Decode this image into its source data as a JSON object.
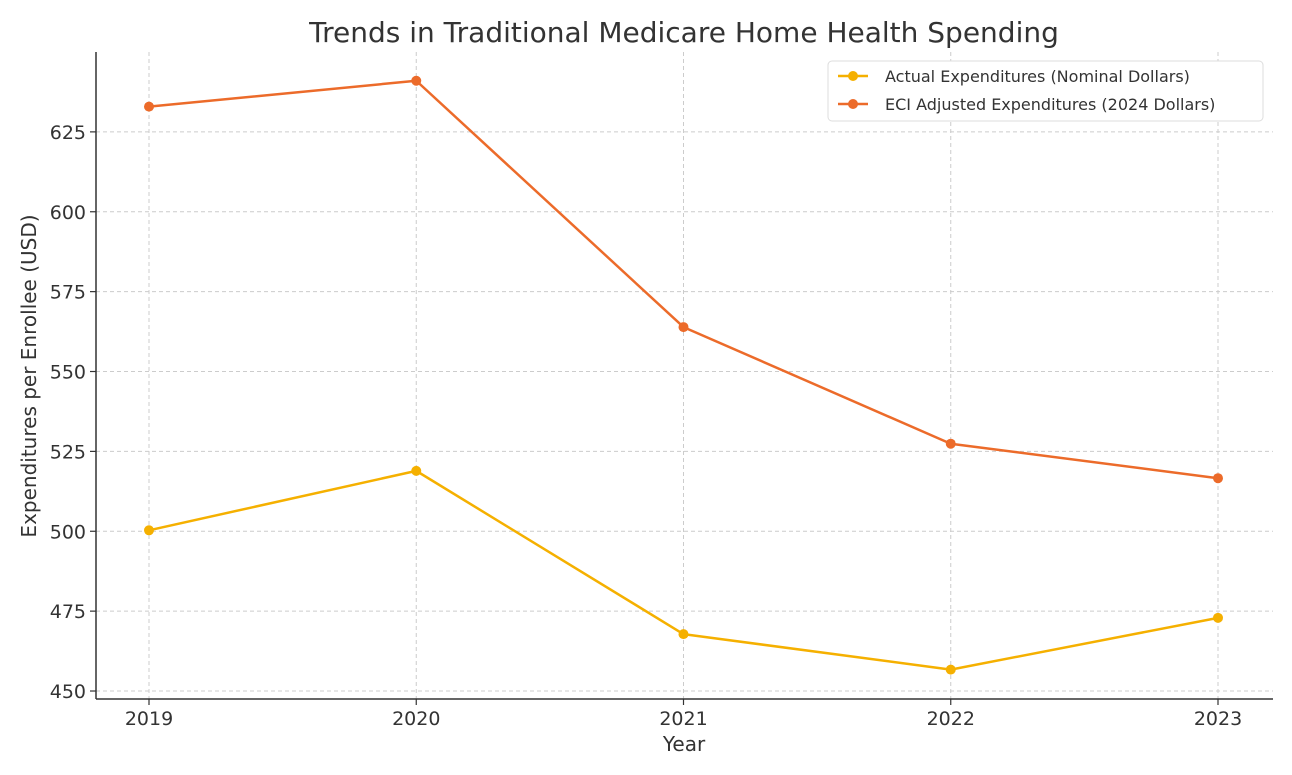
{
  "chart_data": {
    "type": "line",
    "title": "Trends in Traditional Medicare Home Health Spending",
    "xlabel": "Year",
    "ylabel": "Expenditures per Enrollee (USD)",
    "categories": [
      "2019",
      "2020",
      "2021",
      "2022",
      "2023"
    ],
    "y_ticks": [
      450,
      475,
      500,
      525,
      550,
      575,
      600,
      625
    ],
    "ylim": [
      447.5,
      650
    ],
    "grid": true,
    "legend_position": "top-right",
    "series": [
      {
        "name": "Actual Expenditures (Nominal Dollars)",
        "color": "#F5B000",
        "values": [
          500.3,
          518.9,
          467.8,
          456.7,
          472.9
        ]
      },
      {
        "name": "ECI Adjusted Expenditures (2024 Dollars)",
        "color": "#EC6B2A",
        "values": [
          632.9,
          641.0,
          563.9,
          527.4,
          516.6
        ]
      }
    ]
  }
}
